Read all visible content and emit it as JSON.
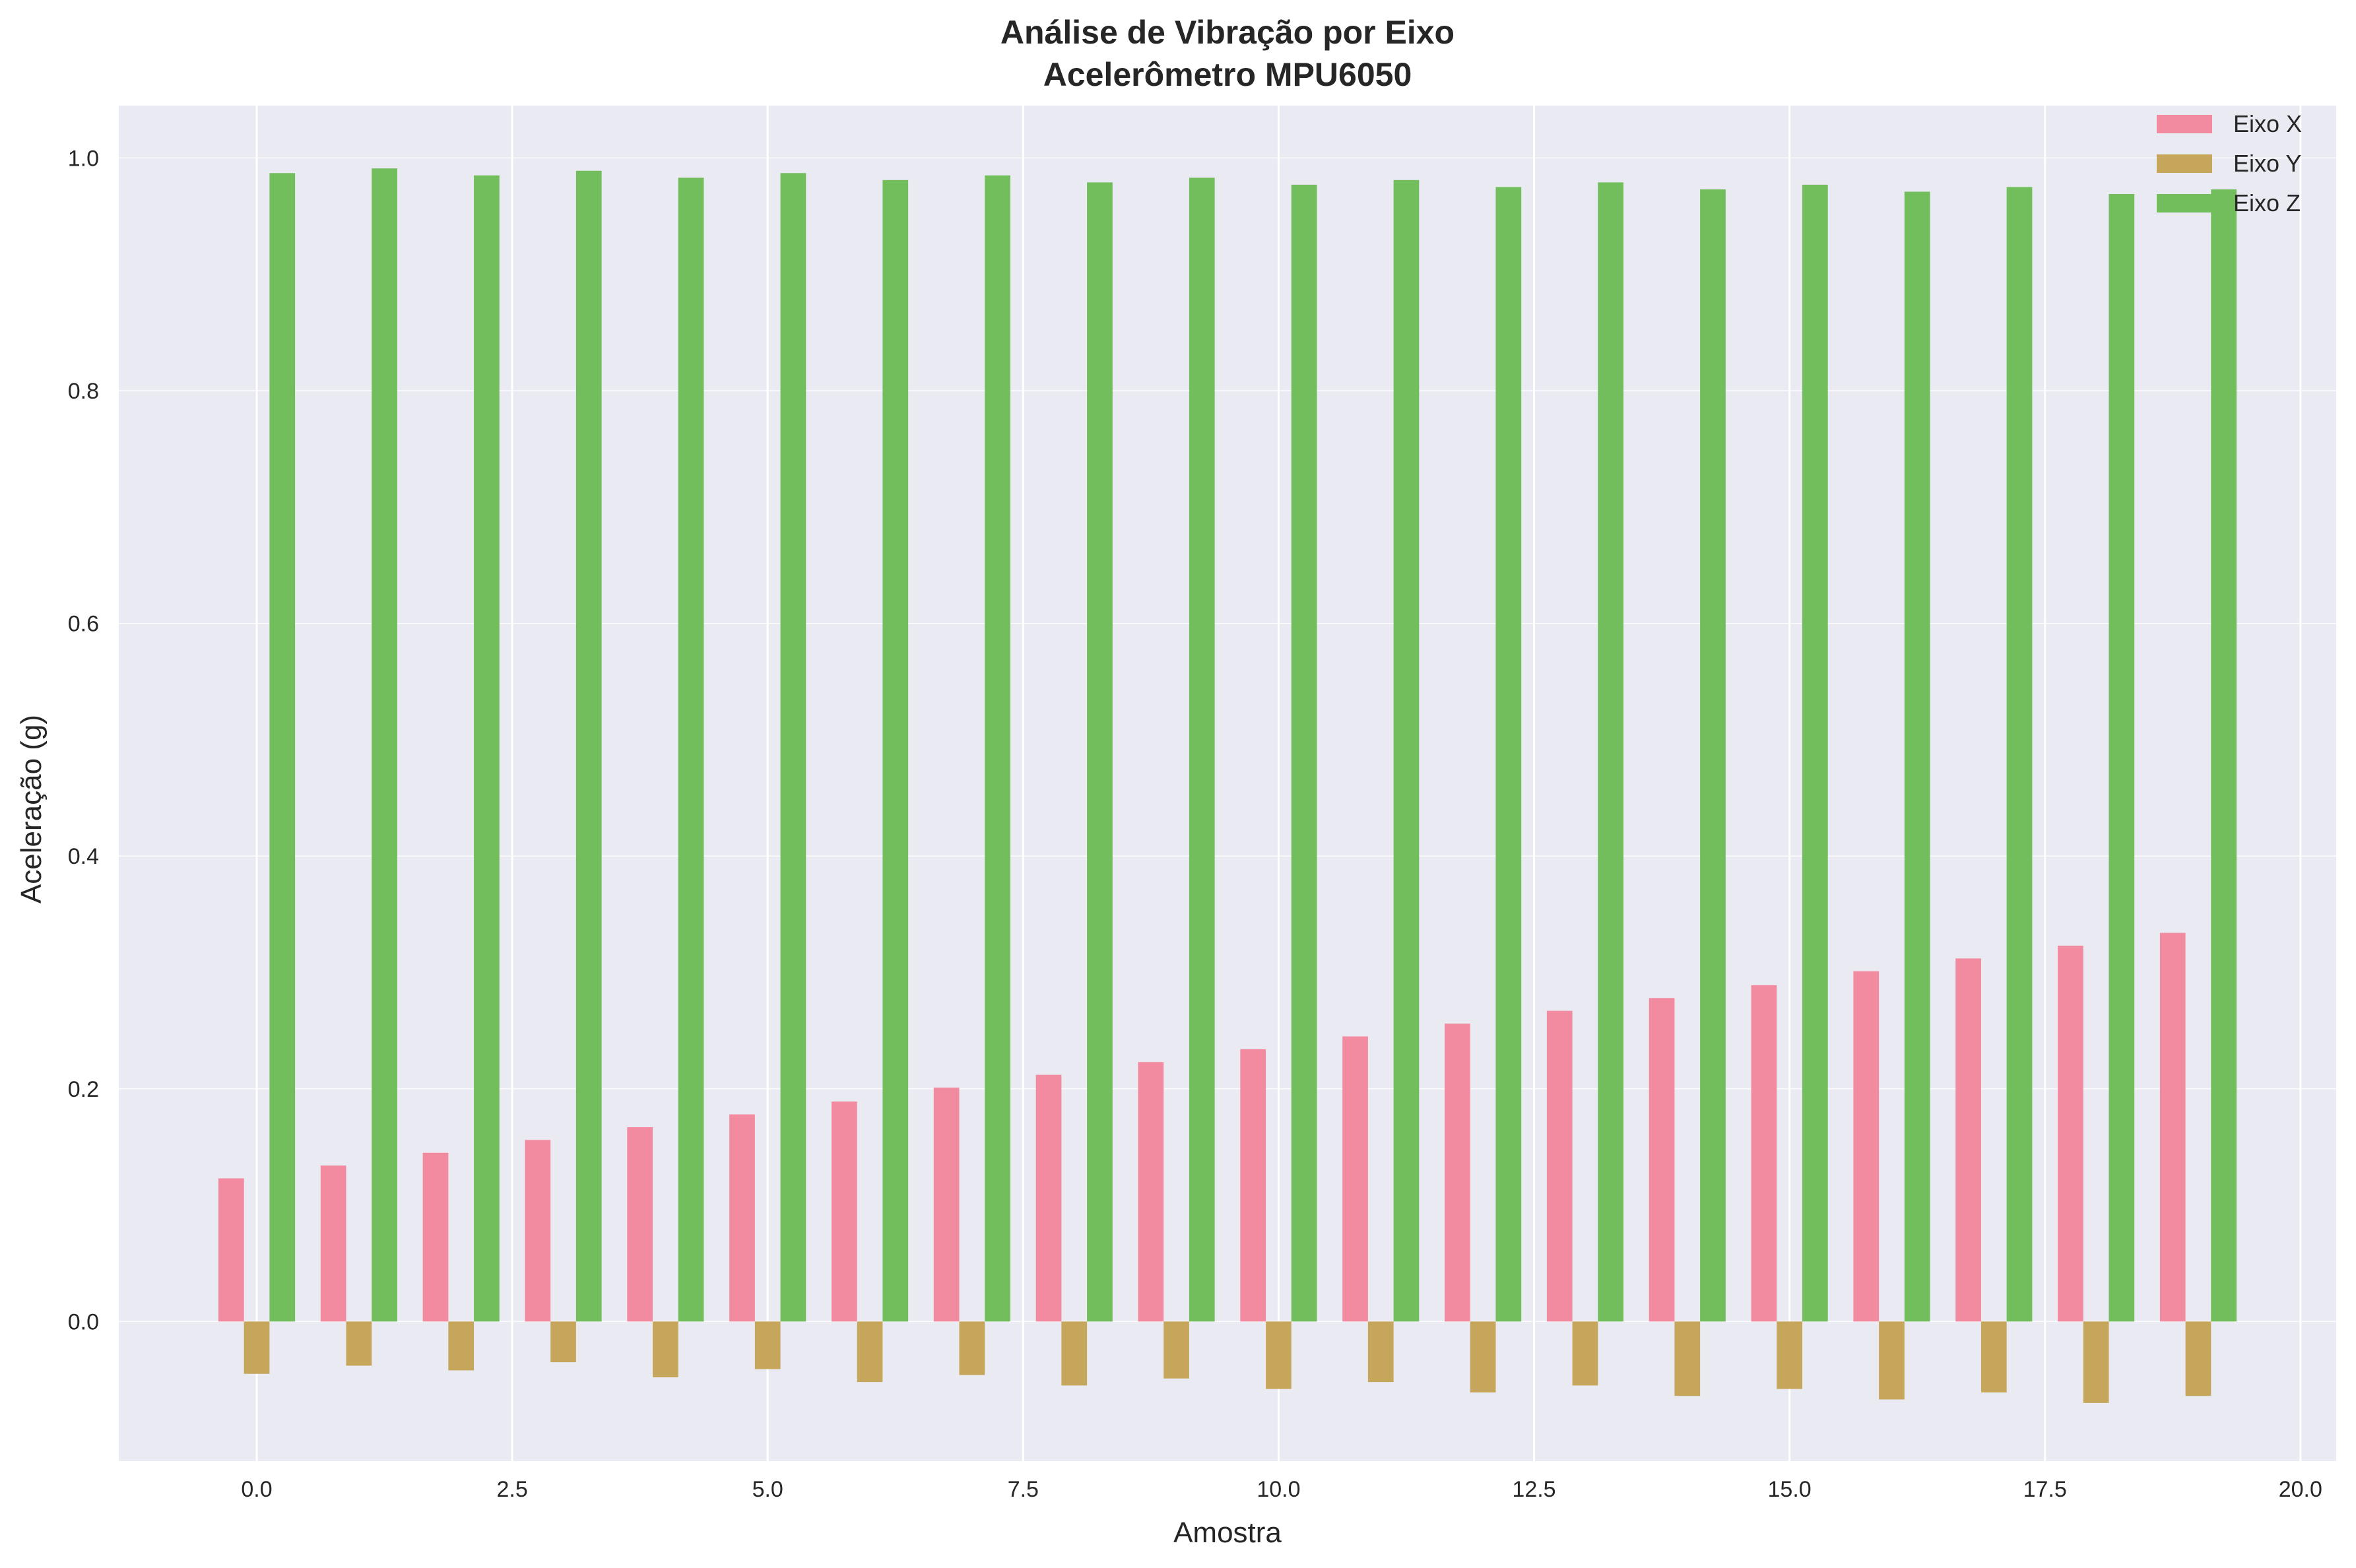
{
  "chart_data": {
    "type": "bar",
    "title": "Análise de Vibração por Eixo",
    "subtitle": "Acelerômetro MPU6050",
    "xlabel": "Amostra",
    "ylabel": "Aceleração (g)",
    "xlim": [
      -1.35,
      20.35
    ],
    "ylim": [
      -0.12,
      1.045
    ],
    "grid": true,
    "legend_position": "top-right",
    "x_ticks": [
      "0.0",
      "2.5",
      "5.0",
      "7.5",
      "10.0",
      "12.5",
      "15.0",
      "17.5",
      "20.0"
    ],
    "x_tick_values": [
      0,
      2.5,
      5,
      7.5,
      10,
      12.5,
      15,
      17.5,
      20
    ],
    "y_ticks": [
      "0.0",
      "0.2",
      "0.4",
      "0.6",
      "0.8",
      "1.0"
    ],
    "y_tick_values": [
      0,
      0.2,
      0.4,
      0.6,
      0.8,
      1.0
    ],
    "x": [
      0,
      1,
      2,
      3,
      4,
      5,
      6,
      7,
      8,
      9,
      10,
      11,
      12,
      13,
      14,
      15,
      16,
      17,
      18,
      19
    ],
    "bar_width": 0.25,
    "series": [
      {
        "name": "Eixo X",
        "color": "#f28ba0",
        "offset": -0.25,
        "values": [
          0.123,
          0.134,
          0.145,
          0.156,
          0.167,
          0.178,
          0.189,
          0.201,
          0.212,
          0.223,
          0.234,
          0.245,
          0.256,
          0.267,
          0.278,
          0.289,
          0.301,
          0.312,
          0.323,
          0.334
        ]
      },
      {
        "name": "Eixo Y",
        "color": "#c6a65a",
        "offset": 0,
        "values": [
          -0.045,
          -0.038,
          -0.042,
          -0.035,
          -0.048,
          -0.041,
          -0.052,
          -0.046,
          -0.055,
          -0.049,
          -0.058,
          -0.052,
          -0.061,
          -0.055,
          -0.064,
          -0.058,
          -0.067,
          -0.061,
          -0.07,
          -0.064
        ]
      },
      {
        "name": "Eixo Z",
        "color": "#72bd5c",
        "offset": 0.25,
        "values": [
          0.987,
          0.991,
          0.985,
          0.989,
          0.983,
          0.987,
          0.981,
          0.985,
          0.979,
          0.983,
          0.977,
          0.981,
          0.975,
          0.979,
          0.973,
          0.977,
          0.971,
          0.975,
          0.969,
          0.973
        ]
      }
    ],
    "colors": {
      "plot_background": "#eaeaf2",
      "grid": "#ffffff",
      "text": "#262626"
    }
  }
}
